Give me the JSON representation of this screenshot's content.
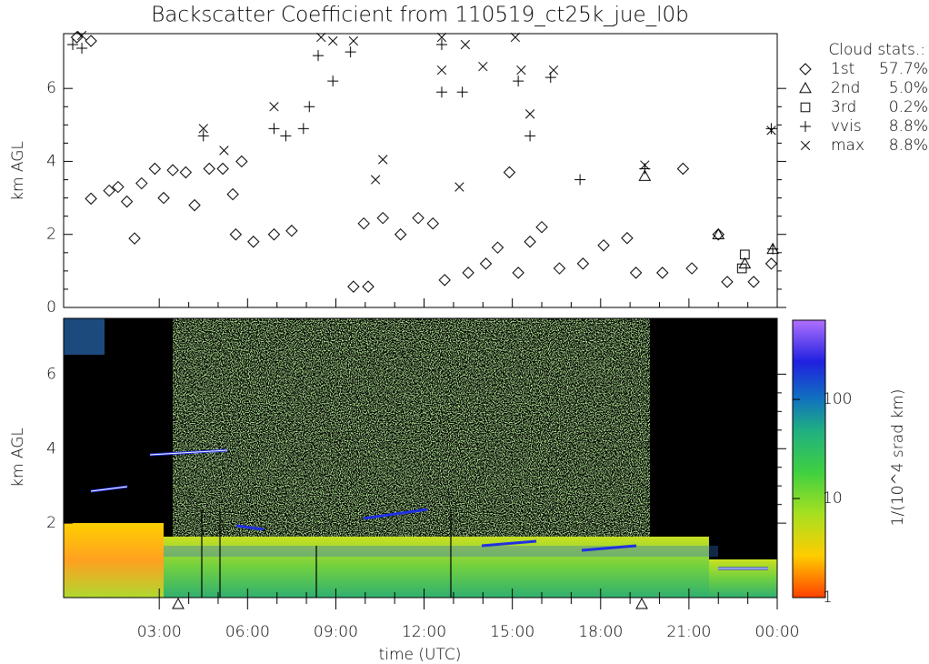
{
  "chart_data": [
    {
      "type": "scatter",
      "title": "Backscatter Coefficient from 110519_ct25k_jue_l0b",
      "ylabel": "km AGL",
      "xlim": [
        -0.25,
        24
      ],
      "ylim": [
        0,
        7.5
      ],
      "yticks": [
        0,
        2,
        4,
        6
      ],
      "legend_title": "Cloud stats.:",
      "series": [
        {
          "name": "1st",
          "marker": "diamond",
          "percent": {
            "value": 57.7,
            "label": "57.7%"
          },
          "x": [
            0.2,
            0.68,
            0.68,
            1.3,
            1.6,
            1.9,
            2.16,
            2.4,
            2.85,
            3.15,
            3.46,
            3.9,
            4.2,
            4.7,
            5.16,
            5.5,
            5.8,
            5.6,
            6.2,
            6.9,
            7.5,
            9.6,
            10.1,
            9.95,
            10.6,
            11.2,
            11.8,
            12.3,
            12.7,
            13.5,
            14.1,
            14.5,
            14.9,
            15.2,
            15.6,
            16.0,
            16.6,
            17.4,
            18.1,
            18.9,
            19.2,
            20.1,
            20.8,
            21.1,
            22.0,
            22.3,
            23.2,
            23.8
          ],
          "y": [
            7.4,
            7.3,
            2.98,
            3.2,
            3.3,
            2.9,
            1.89,
            3.4,
            3.8,
            3.0,
            3.76,
            3.7,
            2.8,
            3.8,
            3.8,
            3.1,
            4.0,
            2.0,
            1.8,
            2.0,
            2.1,
            0.57,
            0.57,
            2.3,
            2.45,
            2.0,
            2.45,
            2.3,
            0.75,
            0.95,
            1.2,
            1.64,
            3.7,
            0.95,
            1.8,
            2.2,
            1.07,
            1.2,
            1.7,
            1.9,
            0.95,
            0.95,
            3.8,
            1.07,
            2.0,
            0.7,
            0.7,
            1.2
          ]
        },
        {
          "name": "2nd",
          "marker": "triangle",
          "percent": {
            "value": 5.0,
            "label": "5.0%"
          },
          "x": [
            19.5,
            22.0,
            23.85,
            22.9
          ],
          "y": [
            3.6,
            2.0,
            1.6,
            1.2
          ]
        },
        {
          "name": "3rd",
          "marker": "square",
          "percent": {
            "value": 0.2,
            "label": "0.2%"
          },
          "x": [
            22.9,
            22.8
          ],
          "y": [
            1.45,
            1.07
          ]
        },
        {
          "name": "vvis",
          "marker": "plus",
          "percent": {
            "value": 8.8,
            "label": "8.8%"
          },
          "x": [
            0.06,
            0.37,
            4.5,
            6.9,
            7.3,
            7.9,
            8.1,
            8.4,
            8.9,
            9.5,
            12.6,
            12.6,
            13.3,
            15.2,
            15.6,
            16.3,
            17.3,
            19.5,
            23.8,
            23.85
          ],
          "y": [
            7.2,
            7.1,
            4.7,
            4.9,
            4.7,
            4.9,
            5.5,
            6.9,
            6.2,
            7.0,
            7.2,
            5.9,
            5.9,
            6.2,
            4.7,
            6.3,
            3.5,
            3.8,
            4.9,
            1.6
          ]
        },
        {
          "name": "max",
          "marker": "cross",
          "percent": {
            "value": 8.8,
            "label": "8.8%"
          },
          "x": [
            0.37,
            4.5,
            5.2,
            6.9,
            8.5,
            8.9,
            9.6,
            12.6,
            12.6,
            13.4,
            14.0,
            15.1,
            15.3,
            15.6,
            16.4,
            10.6,
            10.35,
            13.2,
            19.5,
            23.8
          ],
          "y": [
            7.45,
            4.9,
            4.3,
            5.5,
            7.4,
            7.3,
            7.3,
            7.4,
            6.5,
            7.2,
            6.6,
            7.4,
            6.5,
            5.3,
            6.5,
            4.05,
            3.5,
            3.3,
            3.9,
            4.85
          ]
        }
      ]
    },
    {
      "type": "heatmap",
      "xlabel": "time (UTC)",
      "ylabel": "km AGL",
      "xlim": [
        -0.25,
        24
      ],
      "ylim": [
        0,
        7.5
      ],
      "xticks": [
        {
          "value": 3,
          "label": "03:00"
        },
        {
          "value": 6,
          "label": "06:00"
        },
        {
          "value": 9,
          "label": "09:00"
        },
        {
          "value": 12,
          "label": "12:00"
        },
        {
          "value": 15,
          "label": "15:00"
        },
        {
          "value": 18,
          "label": "18:00"
        },
        {
          "value": 21,
          "label": "21:00"
        },
        {
          "value": 24,
          "label": "00:00"
        }
      ],
      "yticks": [
        2,
        4,
        6
      ],
      "colorbar": {
        "label": "1/(10^4 srad km)",
        "log": true,
        "lim": [
          1,
          630
        ],
        "ticks": [
          1,
          10,
          100
        ]
      }
    }
  ]
}
